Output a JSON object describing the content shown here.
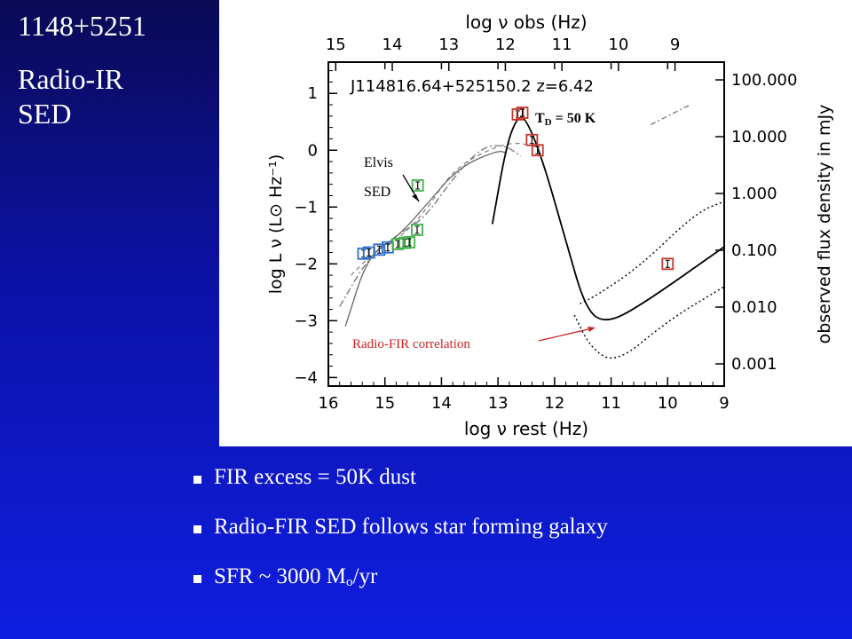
{
  "slide": {
    "title_line1": "1148+5251",
    "title_line2": "Radio-IR SED"
  },
  "bullets": [
    {
      "pre": "FIR excess = 50K dust",
      "sub": "",
      "post": ""
    },
    {
      "pre": "Radio-FIR SED follows star forming galaxy",
      "sub": "",
      "post": ""
    },
    {
      "pre": "SFR ~ 3000 M",
      "sub": "o",
      "post": "/yr"
    }
  ],
  "chart_data": {
    "type": "scatter",
    "title": "J114816.64+525150.2   z=6.42",
    "xlabel_bottom": "log ν rest (Hz)",
    "xlabel_top": "log ν obs (Hz)",
    "ylabel_left": "log L ν (L⊙ Hz⁻¹)",
    "ylabel_right": "observed flux density in mJy",
    "x_bottom_range": [
      16,
      9
    ],
    "x_bottom_ticks": [
      "16",
      "15",
      "14",
      "13",
      "12",
      "11",
      "10",
      "9"
    ],
    "x_top_ticks": [
      "15",
      "14",
      "13",
      "12",
      "11",
      "10",
      "9"
    ],
    "ylim": [
      -4.15,
      1.55
    ],
    "y_left_ticks": [
      "1",
      "0",
      "−1",
      "−2",
      "−3",
      "−4"
    ],
    "y_right_ticks": [
      "100.000",
      "10.000",
      "1.000",
      "0.100",
      "0.010",
      "0.001"
    ],
    "annotations": {
      "td_main": "T",
      "td_sub": "D",
      "td_rest": " = 50 K",
      "elvis_1": "Elvis",
      "elvis_2": "SED",
      "radio_fir": "Radio-FIR correlation"
    },
    "colors": {
      "red": "#c8362b",
      "green": "#3fb24a",
      "blue": "#2f6fd0",
      "annotation_red": "#cc2222"
    },
    "series": [
      {
        "color": "blue",
        "points": [
          [
            15.38,
            -1.82
          ],
          [
            15.28,
            -1.8
          ],
          [
            15.1,
            -1.75
          ],
          [
            14.95,
            -1.71
          ]
        ]
      },
      {
        "color": "green",
        "points": [
          [
            14.77,
            -1.65
          ],
          [
            14.65,
            -1.63
          ],
          [
            14.57,
            -1.62
          ],
          [
            14.43,
            -1.4
          ],
          [
            14.42,
            -0.62
          ]
        ]
      },
      {
        "color": "red",
        "points": [
          [
            12.65,
            0.63
          ],
          [
            12.57,
            0.66
          ],
          [
            12.4,
            0.18
          ],
          [
            12.3,
            0.0
          ],
          [
            10.0,
            -2.0
          ]
        ]
      }
    ],
    "model_curves": {
      "elvis_dashdot": [
        [
          15.8,
          -2.75
        ],
        [
          15.3,
          -1.9
        ],
        [
          14.8,
          -1.5
        ],
        [
          14.3,
          -1.2
        ],
        [
          13.8,
          -0.5
        ],
        [
          13.3,
          0.05
        ],
        [
          12.9,
          0.1
        ],
        [
          12.6,
          -0.1
        ]
      ],
      "elvis_dashed": [
        [
          15.6,
          -2.2
        ],
        [
          15.2,
          -1.8
        ],
        [
          14.8,
          -1.6
        ],
        [
          14.3,
          -1.1
        ],
        [
          13.8,
          -0.35
        ],
        [
          13.2,
          0.0
        ],
        [
          12.7,
          0.15
        ],
        [
          12.3,
          0.05
        ]
      ],
      "elvis_solid_grey": [
        [
          15.7,
          -3.1
        ],
        [
          15.3,
          -1.85
        ],
        [
          14.8,
          -1.55
        ],
        [
          14.3,
          -1.0
        ],
        [
          13.7,
          -0.3
        ],
        [
          13.0,
          0.0
        ],
        [
          12.85,
          -0.05
        ]
      ],
      "dust_50K_solid": [
        [
          13.1,
          -1.3
        ],
        [
          12.85,
          0.1
        ],
        [
          12.65,
          0.6
        ],
        [
          12.5,
          0.55
        ],
        [
          12.2,
          -0.2
        ],
        [
          11.8,
          -1.6
        ],
        [
          11.45,
          -2.8
        ],
        [
          11.1,
          -3.05
        ],
        [
          10.5,
          -2.75
        ],
        [
          9.0,
          -1.7
        ]
      ],
      "radio_upper_dotted": [
        [
          11.55,
          -2.7
        ],
        [
          11.25,
          -2.55
        ],
        [
          10.5,
          -2.05
        ],
        [
          9.5,
          -1.1
        ],
        [
          9.0,
          -0.9
        ]
      ],
      "radio_lower_dotted": [
        [
          11.65,
          -2.9
        ],
        [
          11.35,
          -3.5
        ],
        [
          10.9,
          -3.75
        ],
        [
          10.0,
          -3.0
        ],
        [
          9.0,
          -2.4
        ]
      ],
      "upper_right_dashdot": [
        [
          10.3,
          0.45
        ],
        [
          9.6,
          0.8
        ]
      ]
    }
  }
}
